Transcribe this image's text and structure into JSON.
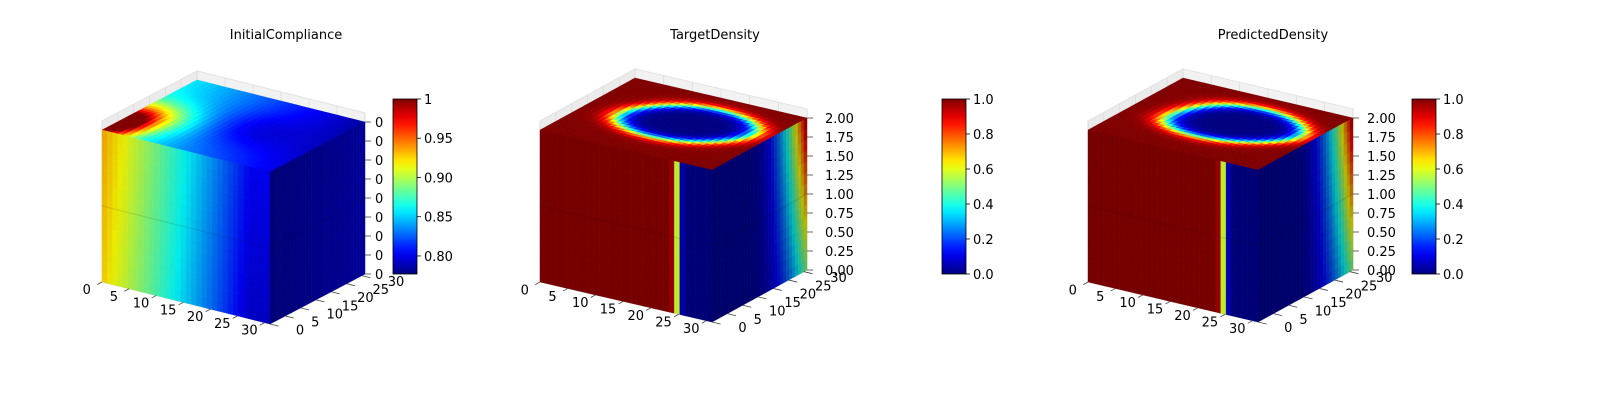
{
  "chart_data": [
    {
      "type": "voxel-3d",
      "title": "InitialCompliance",
      "x_ticks": [
        "0",
        "5",
        "10",
        "15",
        "20",
        "25",
        "30"
      ],
      "y_ticks": [
        "0",
        "5",
        "10",
        "15",
        "20",
        "25",
        "30"
      ],
      "z_ticks": [
        "0",
        "0",
        "0",
        "0",
        "0",
        "0",
        "0",
        "0",
        "0"
      ],
      "colorbar": {
        "ticks": [
          "0.80",
          "0.85",
          "0.90",
          "0.95",
          "1"
        ],
        "range": [
          0.777,
          1.0
        ],
        "colormap": "jet"
      },
      "field": "compliance",
      "value_range": [
        0.78,
        0.93
      ]
    },
    {
      "type": "voxel-3d",
      "title": "TargetDensity",
      "x_ticks": [
        "0",
        "5",
        "10",
        "15",
        "20",
        "25",
        "30"
      ],
      "y_ticks": [
        "0",
        "5",
        "10",
        "15",
        "20",
        "25",
        "30"
      ],
      "z_ticks": [
        "0.00",
        "0.25",
        "0.50",
        "0.75",
        "1.00",
        "1.25",
        "1.50",
        "1.75",
        "2.00"
      ],
      "colorbar": {
        "ticks": [
          "0.0",
          "0.2",
          "0.4",
          "0.6",
          "0.8",
          "1.0"
        ],
        "range": [
          0.0,
          1.0
        ],
        "colormap": "jet"
      },
      "field": "density"
    },
    {
      "type": "voxel-3d",
      "title": "PredictedDensity",
      "x_ticks": [
        "0",
        "5",
        "10",
        "15",
        "20",
        "25",
        "30"
      ],
      "y_ticks": [
        "0",
        "5",
        "10",
        "15",
        "20",
        "25",
        "30"
      ],
      "z_ticks": [
        "0.00",
        "0.25",
        "0.50",
        "0.75",
        "1.00",
        "1.25",
        "1.50",
        "1.75",
        "2.00"
      ],
      "colorbar": {
        "ticks": [
          "0.0",
          "0.2",
          "0.4",
          "0.6",
          "0.8",
          "1.0"
        ],
        "range": [
          0.0,
          1.0
        ],
        "colormap": "jet"
      },
      "field": "density"
    }
  ]
}
